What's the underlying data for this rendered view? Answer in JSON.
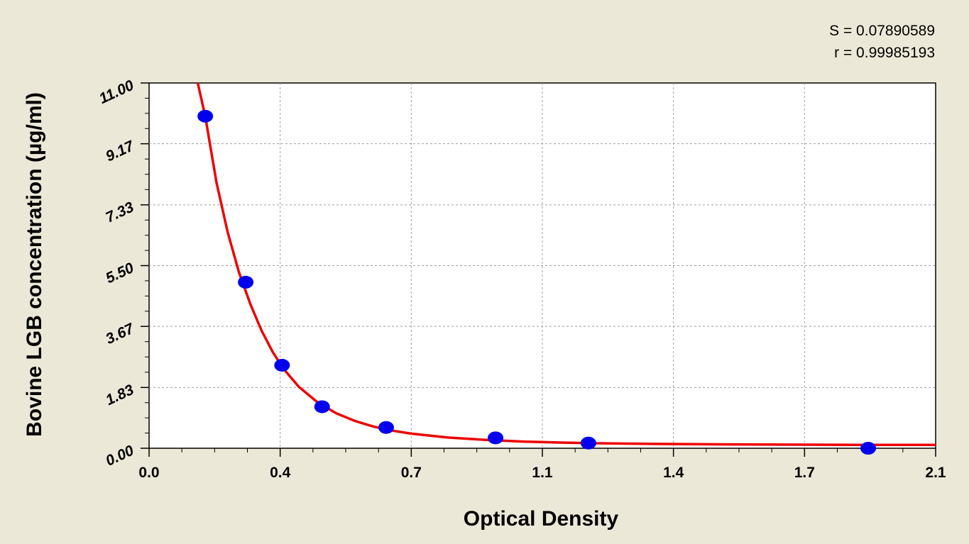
{
  "stats": {
    "s_text": "S = 0.07890589",
    "r_text": "r = 0.99985193"
  },
  "chart_data": {
    "type": "scatter",
    "xlabel": "Optical Density",
    "ylabel": "Bovine LGB concentration (µg/ml)",
    "xlim": [
      0.0,
      2.1
    ],
    "ylim": [
      0.0,
      11.0
    ],
    "x_ticks": [
      "0.0",
      "0.4",
      "0.7",
      "1.1",
      "1.4",
      "1.7",
      "2.1"
    ],
    "x_tick_values": [
      0.0,
      0.35,
      0.7,
      1.05,
      1.4,
      1.75,
      2.1
    ],
    "y_ticks": [
      "0.00",
      "1.83",
      "3.67",
      "5.50",
      "7.33",
      "9.17",
      "11.00"
    ],
    "y_tick_values": [
      0.0,
      1.83,
      3.67,
      5.5,
      7.33,
      9.17,
      11.0
    ],
    "grid": true,
    "colors": {
      "points": "#0000ee",
      "curve": "#ee0000",
      "plot_bg": "#ffffff",
      "page_bg": "#ece8d8",
      "grid": "#a0a0a0"
    },
    "series": [
      {
        "kind": "points",
        "x": [
          0.15,
          0.258,
          0.355,
          0.462,
          0.633,
          0.925,
          1.173,
          1.92
        ],
        "y": [
          10.0,
          5.0,
          2.5,
          1.25,
          0.625,
          0.313,
          0.156,
          0.0
        ]
      },
      {
        "kind": "fit-curve",
        "x": [
          0.13,
          0.15,
          0.18,
          0.21,
          0.24,
          0.27,
          0.3,
          0.33,
          0.36,
          0.4,
          0.45,
          0.5,
          0.55,
          0.6,
          0.65,
          0.7,
          0.8,
          0.9,
          1.0,
          1.1,
          1.2,
          1.35,
          1.5,
          1.7,
          1.9,
          2.1
        ],
        "y": [
          11.0,
          10.0,
          8.0,
          6.5,
          5.3,
          4.35,
          3.55,
          2.9,
          2.38,
          1.85,
          1.38,
          1.05,
          0.82,
          0.65,
          0.53,
          0.44,
          0.32,
          0.25,
          0.2,
          0.17,
          0.15,
          0.13,
          0.12,
          0.11,
          0.1,
          0.1
        ]
      }
    ]
  }
}
